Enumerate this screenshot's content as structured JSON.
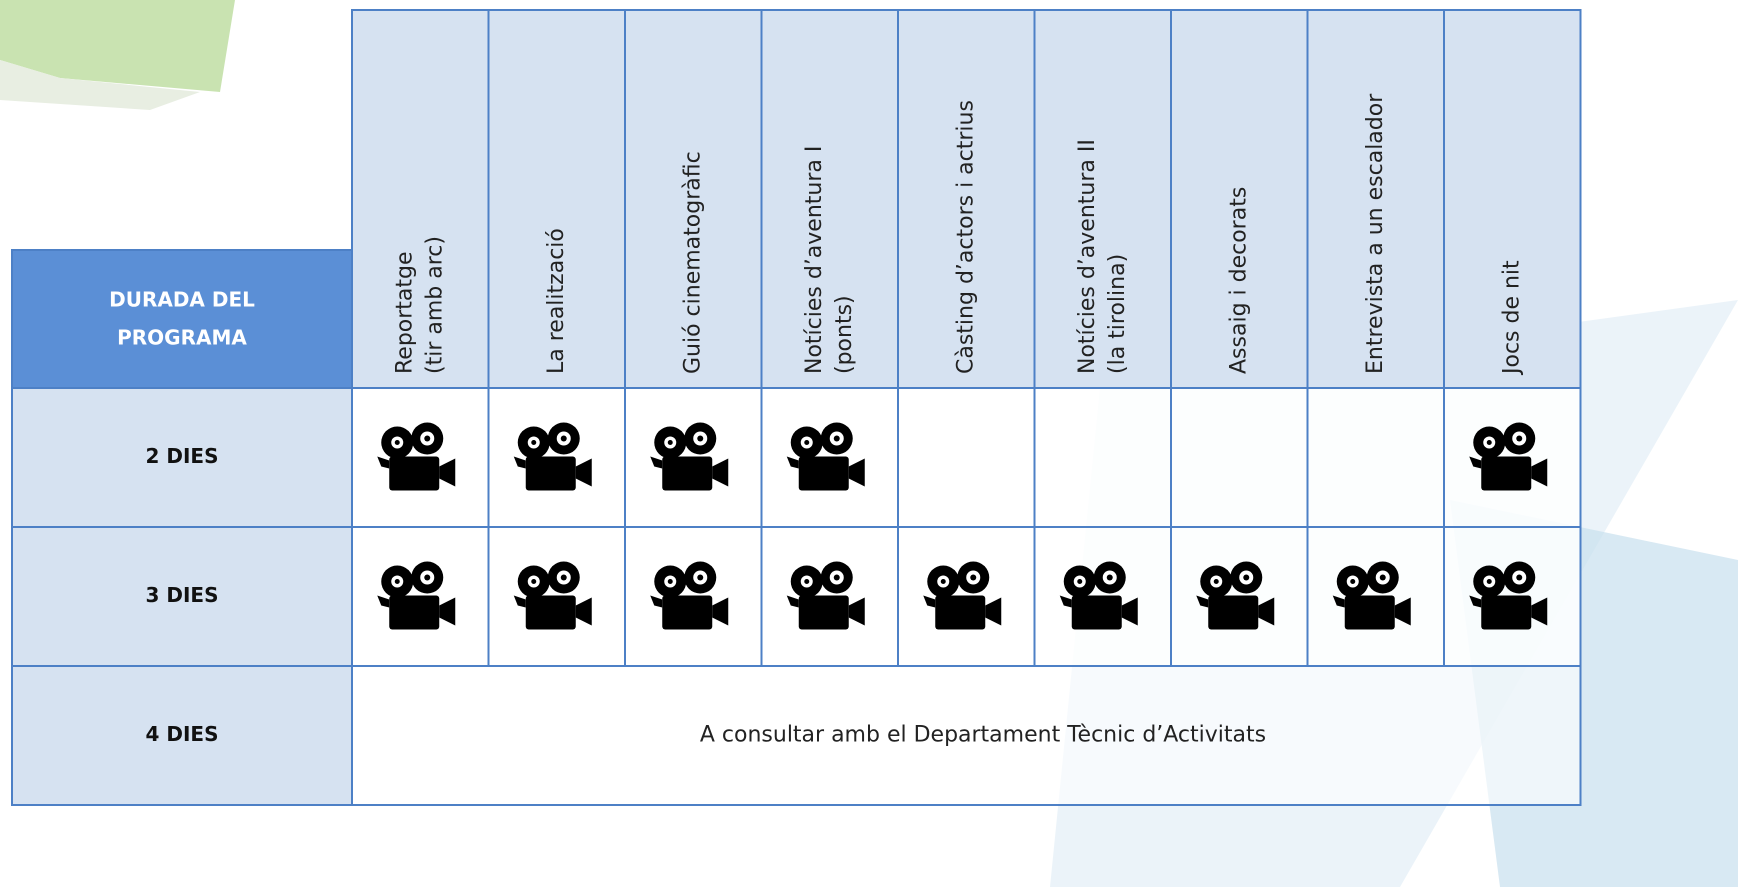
{
  "table": {
    "corner": [
      "DURADA DEL",
      "PROGRAMA"
    ],
    "columns": [
      [
        "Reportatge",
        "(tir amb arc)"
      ],
      [
        "La realització"
      ],
      [
        "Guió cinematogràfic"
      ],
      [
        "Notícies d’aventura I",
        "(ponts)"
      ],
      [
        "Càsting d’actors i actrius"
      ],
      [
        "Notícies d’aventura II",
        "(la tirolina)"
      ],
      [
        "Assaig i decorats"
      ],
      [
        "Entrevista a un escalador"
      ],
      [
        "Jocs de nit"
      ]
    ],
    "rows": [
      {
        "label": "2 DIES",
        "cells": [
          true,
          true,
          true,
          true,
          false,
          false,
          false,
          false,
          true
        ]
      },
      {
        "label": "3 DIES",
        "cells": [
          true,
          true,
          true,
          true,
          true,
          true,
          true,
          true,
          true
        ]
      },
      {
        "label": "4 DIES",
        "note": "A consultar amb el Departament Tècnic d’Activitats"
      }
    ]
  }
}
